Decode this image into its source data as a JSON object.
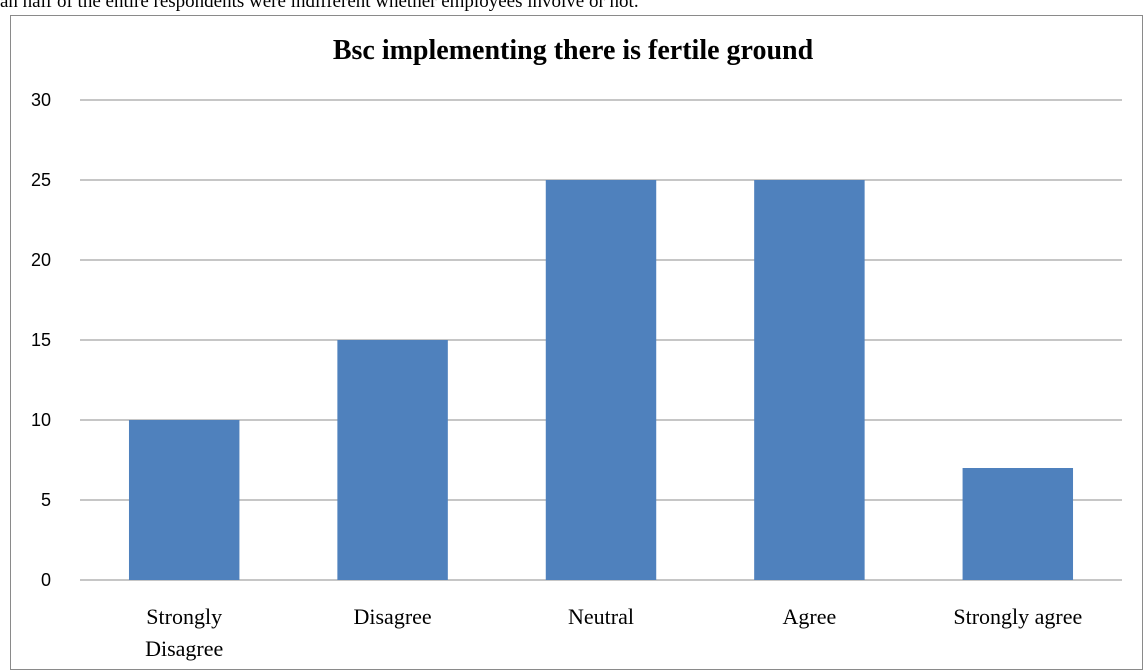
{
  "intro_text": "an half of the entire respondents were indifferent whether employees involve or not.",
  "chart_data": {
    "type": "bar",
    "title": "Bsc implementing there is fertile ground",
    "categories": [
      [
        "Strongly",
        "Disagree"
      ],
      [
        "Disagree"
      ],
      [
        "Neutral"
      ],
      [
        "Agree"
      ],
      [
        "Strongly agree"
      ]
    ],
    "values": [
      10,
      15,
      25,
      25,
      7
    ],
    "ylim": [
      0,
      30
    ],
    "yticks": [
      0,
      5,
      10,
      15,
      20,
      25,
      30
    ],
    "grid": true,
    "legend": "none",
    "bar_color": "#4f81bd",
    "xlabel": "",
    "ylabel": ""
  }
}
